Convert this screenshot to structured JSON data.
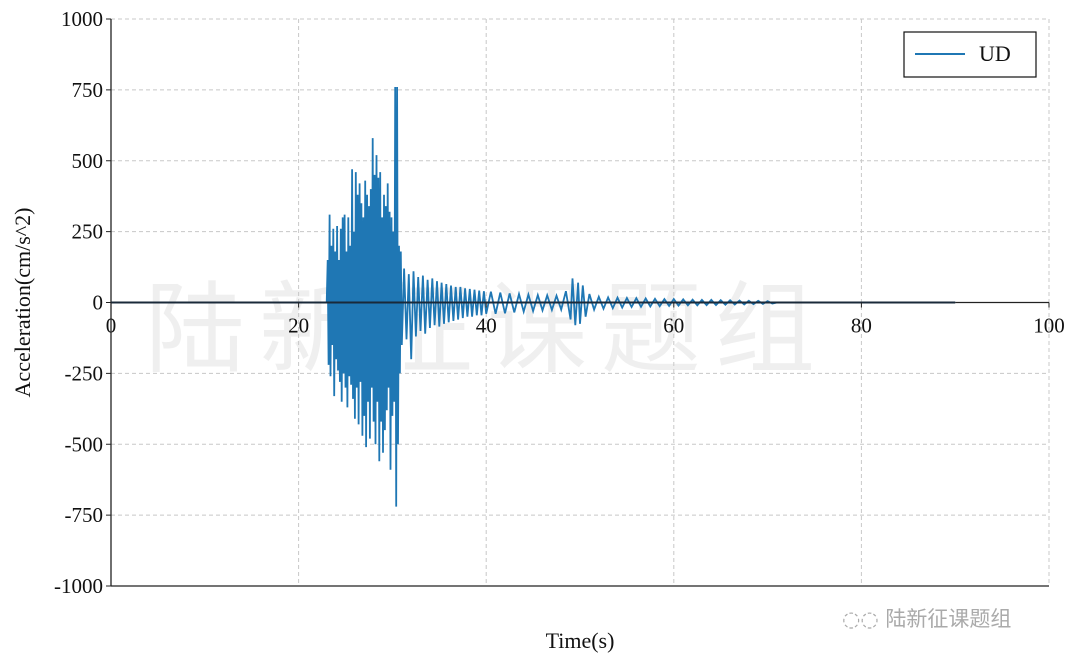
{
  "chart_data": {
    "type": "line",
    "title": "",
    "xlabel": "Time(s)",
    "ylabel": "Acceleration(cm/s^2)",
    "xlim": [
      0,
      100
    ],
    "ylim": [
      -1000,
      1000
    ],
    "xticks": [
      0,
      20,
      40,
      60,
      80,
      100
    ],
    "yticks": [
      1000,
      750,
      500,
      250,
      0,
      -250,
      -500,
      -750,
      -1000
    ],
    "grid": true,
    "legend": "top-right",
    "series": [
      {
        "name": "UD",
        "color": "#1f77b4",
        "points": [
          [
            0,
            0
          ],
          [
            23.0,
            0
          ],
          [
            23.1,
            150
          ],
          [
            23.2,
            -220
          ],
          [
            23.3,
            310
          ],
          [
            23.4,
            -260
          ],
          [
            23.5,
            200
          ],
          [
            23.6,
            -150
          ],
          [
            23.7,
            260
          ],
          [
            23.8,
            -330
          ],
          [
            23.9,
            180
          ],
          [
            24.0,
            -200
          ],
          [
            24.1,
            270
          ],
          [
            24.2,
            -240
          ],
          [
            24.3,
            150
          ],
          [
            24.4,
            -280
          ],
          [
            24.5,
            260
          ],
          [
            24.6,
            -350
          ],
          [
            24.7,
            300
          ],
          [
            24.8,
            -250
          ],
          [
            24.9,
            310
          ],
          [
            25.0,
            -300
          ],
          [
            25.1,
            180
          ],
          [
            25.2,
            -370
          ],
          [
            25.3,
            300
          ],
          [
            25.4,
            -260
          ],
          [
            25.5,
            200
          ],
          [
            25.6,
            -290
          ],
          [
            25.7,
            470
          ],
          [
            25.8,
            -340
          ],
          [
            25.9,
            250
          ],
          [
            26.0,
            -410
          ],
          [
            26.1,
            460
          ],
          [
            26.2,
            -300
          ],
          [
            26.3,
            380
          ],
          [
            26.4,
            -430
          ],
          [
            26.5,
            420
          ],
          [
            26.6,
            -280
          ],
          [
            26.7,
            350
          ],
          [
            26.8,
            -470
          ],
          [
            26.9,
            300
          ],
          [
            27.0,
            -400
          ],
          [
            27.1,
            430
          ],
          [
            27.2,
            -510
          ],
          [
            27.3,
            380
          ],
          [
            27.4,
            -350
          ],
          [
            27.5,
            340
          ],
          [
            27.6,
            -480
          ],
          [
            27.7,
            400
          ],
          [
            27.8,
            -300
          ],
          [
            27.9,
            580
          ],
          [
            28.0,
            -420
          ],
          [
            28.1,
            450
          ],
          [
            28.2,
            -500
          ],
          [
            28.3,
            520
          ],
          [
            28.4,
            -350
          ],
          [
            28.5,
            440
          ],
          [
            28.6,
            -560
          ],
          [
            28.7,
            460
          ],
          [
            28.8,
            -420
          ],
          [
            28.9,
            300
          ],
          [
            29.0,
            -530
          ],
          [
            29.1,
            380
          ],
          [
            29.2,
            -450
          ],
          [
            29.3,
            340
          ],
          [
            29.4,
            -380
          ],
          [
            29.5,
            420
          ],
          [
            29.6,
            -300
          ],
          [
            29.7,
            320
          ],
          [
            29.8,
            -590
          ],
          [
            29.9,
            300
          ],
          [
            30.0,
            -400
          ],
          [
            30.1,
            250
          ],
          [
            30.2,
            -350
          ],
          [
            30.3,
            760
          ],
          [
            30.4,
            -720
          ],
          [
            30.5,
            760
          ],
          [
            30.6,
            -500
          ],
          [
            30.7,
            200
          ],
          [
            30.8,
            -250
          ],
          [
            30.9,
            180
          ],
          [
            31.0,
            -150
          ],
          [
            31.25,
            120
          ],
          [
            31.5,
            -130
          ],
          [
            31.75,
            100
          ],
          [
            32.0,
            -200
          ],
          [
            32.25,
            110
          ],
          [
            32.5,
            -120
          ],
          [
            32.75,
            90
          ],
          [
            33.0,
            -100
          ],
          [
            33.25,
            95
          ],
          [
            33.5,
            -110
          ],
          [
            33.75,
            80
          ],
          [
            34.0,
            -90
          ],
          [
            34.25,
            85
          ],
          [
            34.5,
            -80
          ],
          [
            34.75,
            75
          ],
          [
            35.0,
            -85
          ],
          [
            35.25,
            70
          ],
          [
            35.5,
            -75
          ],
          [
            35.75,
            65
          ],
          [
            36.0,
            -70
          ],
          [
            36.25,
            60
          ],
          [
            36.5,
            -65
          ],
          [
            36.75,
            55
          ],
          [
            37.0,
            -60
          ],
          [
            37.25,
            55
          ],
          [
            37.5,
            -55
          ],
          [
            37.75,
            50
          ],
          [
            38.0,
            -50
          ],
          [
            38.25,
            48
          ],
          [
            38.5,
            -50
          ],
          [
            38.75,
            45
          ],
          [
            39.0,
            -45
          ],
          [
            39.25,
            42
          ],
          [
            39.5,
            -45
          ],
          [
            39.75,
            40
          ],
          [
            40.0,
            -40
          ],
          [
            40.5,
            38
          ],
          [
            41.0,
            -40
          ],
          [
            41.5,
            35
          ],
          [
            42.0,
            -38
          ],
          [
            42.5,
            32
          ],
          [
            43.0,
            -35
          ],
          [
            43.5,
            30
          ],
          [
            44.0,
            -32
          ],
          [
            44.5,
            28
          ],
          [
            45.0,
            -30
          ],
          [
            45.5,
            26
          ],
          [
            46.0,
            -28
          ],
          [
            46.5,
            25
          ],
          [
            47.0,
            -26
          ],
          [
            47.5,
            24
          ],
          [
            48.0,
            -25
          ],
          [
            48.5,
            40
          ],
          [
            49.0,
            -60
          ],
          [
            49.2,
            85
          ],
          [
            49.5,
            -80
          ],
          [
            49.8,
            70
          ],
          [
            50.0,
            -75
          ],
          [
            50.3,
            60
          ],
          [
            50.6,
            -50
          ],
          [
            51.0,
            30
          ],
          [
            51.5,
            -25
          ],
          [
            52.0,
            20
          ],
          [
            52.5,
            -22
          ],
          [
            53.0,
            18
          ],
          [
            53.5,
            -20
          ],
          [
            54.0,
            17
          ],
          [
            54.5,
            -18
          ],
          [
            55.0,
            16
          ],
          [
            55.5,
            -16
          ],
          [
            56.0,
            15
          ],
          [
            56.5,
            -15
          ],
          [
            57.0,
            14
          ],
          [
            57.5,
            -14
          ],
          [
            58.0,
            13
          ],
          [
            58.5,
            -13
          ],
          [
            59.0,
            12
          ],
          [
            59.5,
            -12
          ],
          [
            60.0,
            12
          ],
          [
            60.5,
            -11
          ],
          [
            61.0,
            11
          ],
          [
            61.5,
            -10
          ],
          [
            62.0,
            10
          ],
          [
            62.5,
            -10
          ],
          [
            63.0,
            9
          ],
          [
            63.5,
            -9
          ],
          [
            64.0,
            9
          ],
          [
            64.5,
            -9
          ],
          [
            65.0,
            8
          ],
          [
            65.5,
            -8
          ],
          [
            66.0,
            8
          ],
          [
            66.5,
            -7
          ],
          [
            67.0,
            7
          ],
          [
            67.5,
            -7
          ],
          [
            68.0,
            6
          ],
          [
            68.5,
            -6
          ],
          [
            69.0,
            6
          ],
          [
            69.5,
            -5
          ],
          [
            70.0,
            5
          ],
          [
            70.5,
            -4
          ],
          [
            71.0,
            0
          ],
          [
            90.0,
            0
          ]
        ]
      }
    ]
  },
  "watermark": "陆新征课题组",
  "logo_text": "陆新征课题组"
}
